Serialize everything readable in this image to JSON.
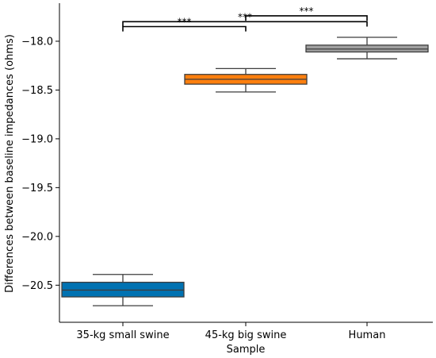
{
  "chart_data": {
    "type": "box",
    "xlabel": "Sample",
    "ylabel": "Differences between baseline impedances (ohms)",
    "ylim": [
      -20.88,
      -17.61
    ],
    "yticks": [
      -18.0,
      -18.5,
      -19.0,
      -19.5,
      -20.0,
      -20.5
    ],
    "ytick_labels": [
      "−18.0",
      "−18.5",
      "−19.0",
      "−19.5",
      "−20.0",
      "−20.5"
    ],
    "categories": [
      "35-kg small swine",
      "45-kg big swine",
      "Human"
    ],
    "boxes": [
      {
        "label": "35-kg small swine",
        "color": "#0072b2",
        "whisker_low": -20.71,
        "q1": -20.62,
        "median": -20.55,
        "q3": -20.47,
        "whisker_high": -20.39
      },
      {
        "label": "45-kg big swine",
        "color": "#ff7f0e",
        "whisker_low": -18.52,
        "q1": -18.44,
        "median": -18.39,
        "q3": -18.34,
        "whisker_high": -18.28
      },
      {
        "label": "Human",
        "color": "#a0a0a0",
        "whisker_low": -18.18,
        "q1": -18.11,
        "median": -18.08,
        "q3": -18.04,
        "whisker_high": -17.96
      }
    ],
    "significance": [
      {
        "from": 0,
        "to": 1,
        "label": "***",
        "y": -17.85,
        "tick_y": -17.9
      },
      {
        "from": 1,
        "to": 2,
        "label": "***",
        "y": -17.74,
        "tick_y": -17.79
      },
      {
        "from": 0,
        "to": 2,
        "label": "***",
        "y": -17.8,
        "tick_y": -17.85
      }
    ]
  }
}
